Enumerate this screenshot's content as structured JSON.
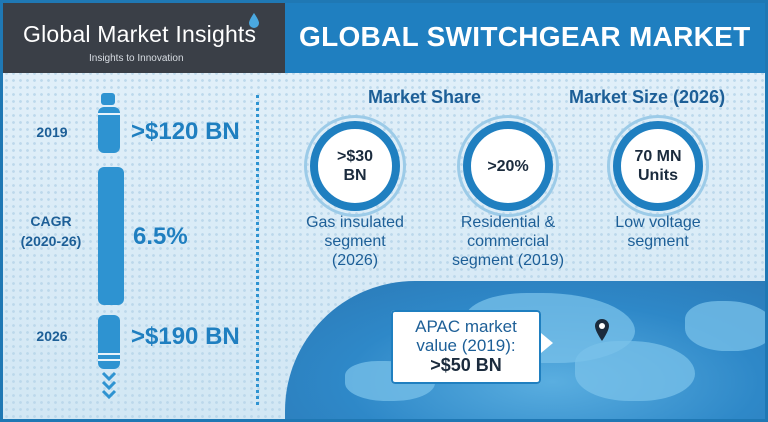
{
  "header": {
    "logo_text": "Global Market Insights",
    "logo_tagline": "Insights to Innovation",
    "title": "GLOBAL SWITCHGEAR MARKET"
  },
  "timeline": {
    "start_year": "2019",
    "start_value": ">$120 BN",
    "cagr_label": "CAGR",
    "cagr_period": "(2020-26)",
    "cagr_value": "6.5%",
    "end_year": "2026",
    "end_value": ">$190 BN"
  },
  "market_share": {
    "title": "Market Share",
    "items": [
      {
        "value_line1": ">$30",
        "value_line2": "BN",
        "caption_line1": "Gas insulated",
        "caption_line2": "segment",
        "caption_line3": "(2026)"
      },
      {
        "value_line1": ">20%",
        "value_line2": "",
        "caption_line1": "Residential &",
        "caption_line2": "commercial",
        "caption_line3": "segment (2019)"
      }
    ]
  },
  "market_size": {
    "title": "Market Size (2026)",
    "value_line1": "70 MN",
    "value_line2": "Units",
    "caption_line1": "Low voltage",
    "caption_line2": "segment"
  },
  "apac": {
    "line1": "APAC market",
    "line2": "value (2019):",
    "value": ">$50 BN"
  },
  "colors": {
    "accent": "#1f7fc0",
    "dark_header": "#3a3f47",
    "text_blue": "#1d5f97"
  }
}
